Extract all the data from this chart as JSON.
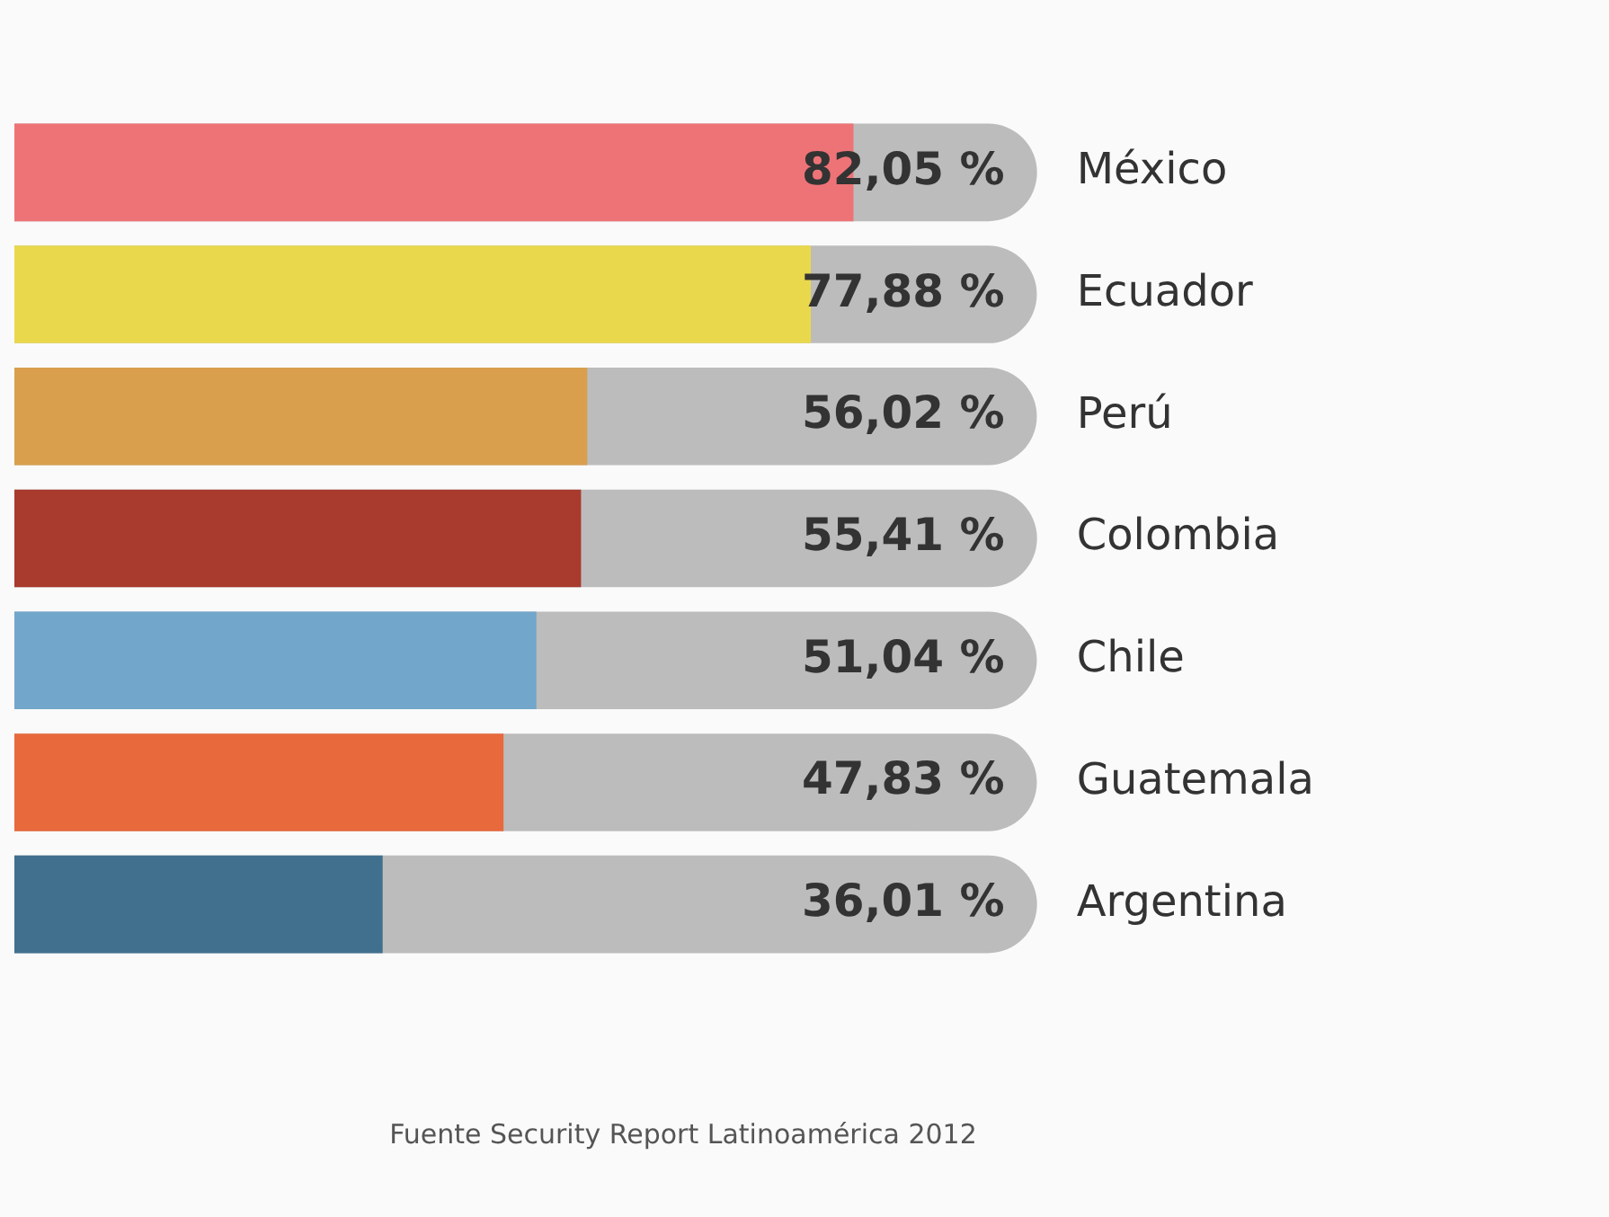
{
  "chart_data": {
    "type": "bar",
    "orientation": "horizontal",
    "categories": [
      "México",
      "Ecuador",
      "Perú",
      "Colombia",
      "Chile",
      "Guatemala",
      "Argentina"
    ],
    "values": [
      82.05,
      77.88,
      56.02,
      55.41,
      51.04,
      47.83,
      36.01
    ],
    "colors": [
      "#ee7377",
      "#e9d84c",
      "#d99f4c",
      "#a83a2e",
      "#72a6cb",
      "#e8693c",
      "#41708f"
    ],
    "value_labels": [
      "82,05 %",
      "77,88 %",
      "56,02 %",
      "55,41 %",
      "51,04 %",
      "47,83 %",
      "36,01 %"
    ],
    "xlim": [
      0,
      100
    ],
    "tick_labels": "y",
    "grid": false,
    "legend": false,
    "annotations": [
      "Fuente Security Report Latinoamérica 2012"
    ]
  }
}
